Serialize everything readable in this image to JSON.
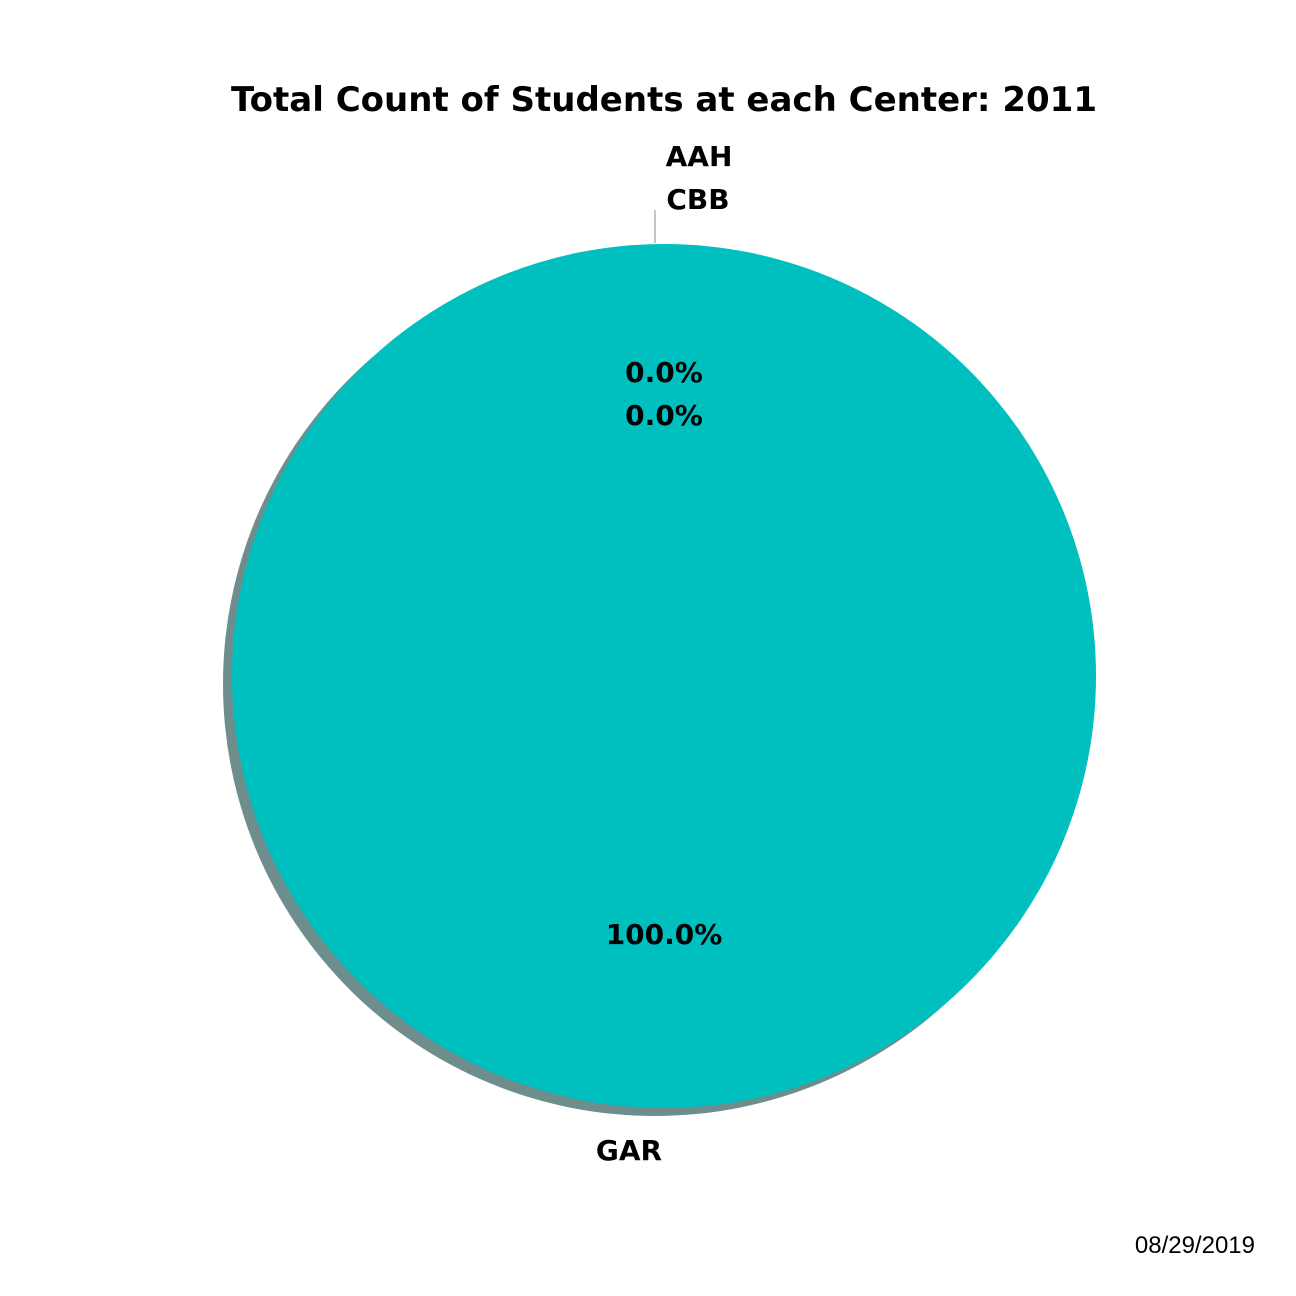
{
  "chart_data": {
    "type": "pie",
    "title": "Total Count of Students at each Center: 2011",
    "categories": [
      "AAH",
      "CBB",
      "GAR"
    ],
    "values": [
      0,
      0,
      100
    ],
    "percent_labels": [
      "0.0%",
      "0.0%",
      "100.0%"
    ],
    "colors": [
      "#00bfbf",
      "#00bfbf",
      "#00bfbf"
    ],
    "shadow": true,
    "legend": "none",
    "start_angle_deg": 90
  },
  "footer": {
    "date": "08/29/2019"
  }
}
